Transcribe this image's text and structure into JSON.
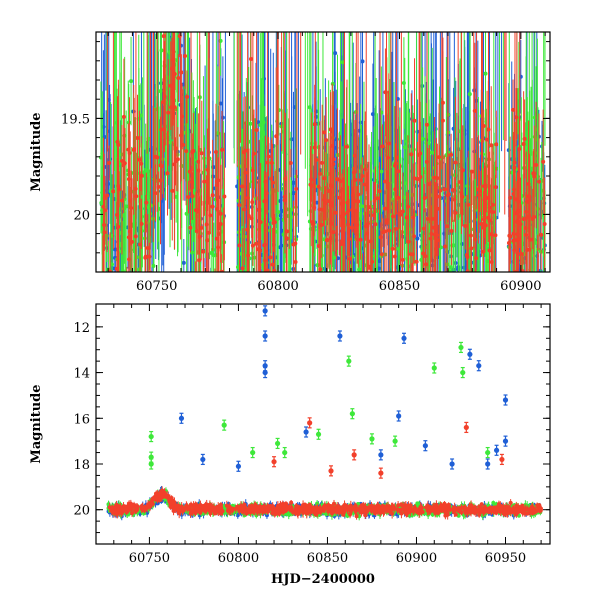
{
  "chart_data": [
    {
      "type": "scatter",
      "panel": "top",
      "title": "",
      "xlabel": "",
      "ylabel": "Magnitude",
      "xlim": [
        60725,
        60912
      ],
      "ylim": [
        20.3,
        19.05
      ],
      "y_inverted": true,
      "grid": false,
      "xticks": [
        60750,
        60800,
        60850,
        60900
      ],
      "xtick_labels": [
        "60750",
        "60800",
        "60850",
        "60900"
      ],
      "yticks": [
        19.5,
        20
      ],
      "ytick_labels": [
        "19.5",
        "20"
      ],
      "series": [
        {
          "name": "blue",
          "color": "#1f5fd6",
          "baseline": 20.0,
          "scatter": 0.2,
          "typical_error": 0.18
        },
        {
          "name": "green",
          "color": "#3ee83a",
          "baseline": 20.0,
          "scatter": 0.2,
          "typical_error": 0.18
        },
        {
          "name": "red",
          "color": "#f2402b",
          "baseline": 19.98,
          "scatter": 0.15,
          "typical_error": 0.12
        }
      ],
      "features": [
        {
          "label": "brightening",
          "x_center": 60757,
          "peak_mag": 19.35,
          "width_days": 6
        }
      ]
    },
    {
      "type": "scatter",
      "panel": "bottom",
      "title": "",
      "xlabel": "HJD−2400000",
      "ylabel": "Magnitude",
      "xlim": [
        60720,
        60975
      ],
      "ylim": [
        21.5,
        11
      ],
      "y_inverted": true,
      "grid": false,
      "xticks": [
        60750,
        60800,
        60850,
        60900,
        60950
      ],
      "xtick_labels": [
        "60750",
        "60800",
        "60850",
        "60900",
        "60950"
      ],
      "yticks": [
        12,
        14,
        16,
        18,
        20
      ],
      "ytick_labels": [
        "12",
        "14",
        "16",
        "18",
        "20"
      ],
      "series": [
        {
          "name": "blue",
          "color": "#1f5fd6",
          "baseline": 20.0,
          "outliers": [
            {
              "x": 60815,
              "y": 11.3
            },
            {
              "x": 60815,
              "y": 12.4
            },
            {
              "x": 60815,
              "y": 13.7
            },
            {
              "x": 60815,
              "y": 14.0
            },
            {
              "x": 60768,
              "y": 16.0
            },
            {
              "x": 60780,
              "y": 17.8
            },
            {
              "x": 60800,
              "y": 18.1
            },
            {
              "x": 60838,
              "y": 16.6
            },
            {
              "x": 60857,
              "y": 12.4
            },
            {
              "x": 60880,
              "y": 17.6
            },
            {
              "x": 60890,
              "y": 15.9
            },
            {
              "x": 60893,
              "y": 12.5
            },
            {
              "x": 60905,
              "y": 17.2
            },
            {
              "x": 60920,
              "y": 18.0
            },
            {
              "x": 60930,
              "y": 13.2
            },
            {
              "x": 60935,
              "y": 13.7
            },
            {
              "x": 60940,
              "y": 18.0
            },
            {
              "x": 60945,
              "y": 17.4
            },
            {
              "x": 60950,
              "y": 15.2
            },
            {
              "x": 60950,
              "y": 17.0
            }
          ]
        },
        {
          "name": "green",
          "color": "#3ee83a",
          "baseline": 20.0,
          "outliers": [
            {
              "x": 60751,
              "y": 16.8
            },
            {
              "x": 60751,
              "y": 17.7
            },
            {
              "x": 60751,
              "y": 18.0
            },
            {
              "x": 60792,
              "y": 16.3
            },
            {
              "x": 60808,
              "y": 17.5
            },
            {
              "x": 60822,
              "y": 17.1
            },
            {
              "x": 60826,
              "y": 17.5
            },
            {
              "x": 60845,
              "y": 16.7
            },
            {
              "x": 60862,
              "y": 13.5
            },
            {
              "x": 60864,
              "y": 15.8
            },
            {
              "x": 60875,
              "y": 16.9
            },
            {
              "x": 60888,
              "y": 17.0
            },
            {
              "x": 60910,
              "y": 13.8
            },
            {
              "x": 60925,
              "y": 12.9
            },
            {
              "x": 60926,
              "y": 14.0
            },
            {
              "x": 60940,
              "y": 17.5
            }
          ]
        },
        {
          "name": "red",
          "color": "#f2402b",
          "baseline": 19.98,
          "outliers": [
            {
              "x": 60820,
              "y": 17.9
            },
            {
              "x": 60840,
              "y": 16.2
            },
            {
              "x": 60852,
              "y": 18.3
            },
            {
              "x": 60865,
              "y": 17.6
            },
            {
              "x": 60880,
              "y": 18.4
            },
            {
              "x": 60928,
              "y": 16.4
            },
            {
              "x": 60948,
              "y": 17.8
            }
          ]
        }
      ],
      "features": [
        {
          "label": "brightening",
          "x_center": 60757,
          "peak_mag": 19.35,
          "width_days": 6
        }
      ]
    }
  ]
}
